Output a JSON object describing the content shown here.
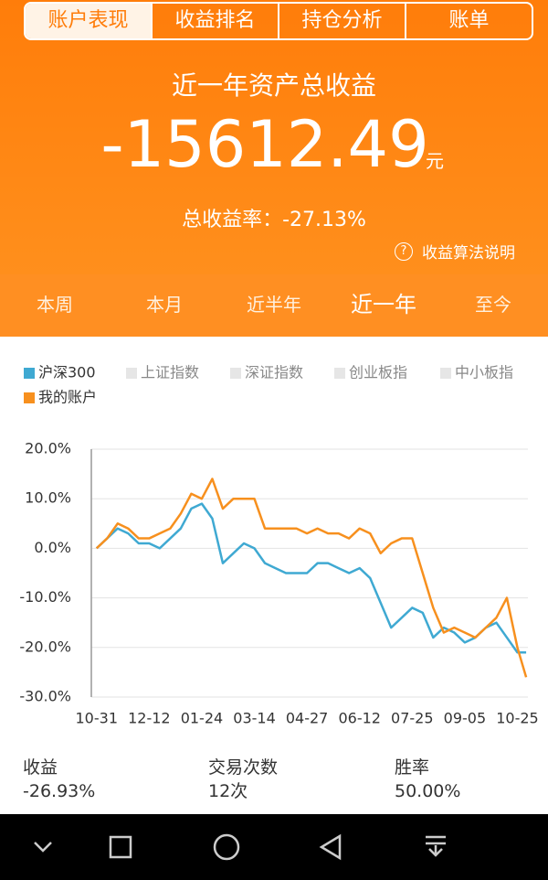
{
  "top_tabs": [
    "账户表现",
    "收益排名",
    "持仓分析",
    "账单"
  ],
  "header": {
    "title": "近一年资产总收益",
    "amount": "-15612.49",
    "unit": "元",
    "rate": "总收益率：-27.13%",
    "help": "收益算法说明"
  },
  "period_tabs": [
    "本周",
    "本月",
    "近半年",
    "近一年",
    "至今"
  ],
  "chart_data": {
    "type": "line",
    "x": [
      0,
      6,
      12,
      18,
      24,
      30,
      36,
      42,
      48,
      54,
      60,
      66,
      72,
      78,
      84,
      90,
      96,
      102,
      108,
      114,
      120,
      126,
      132,
      138,
      144,
      150,
      156,
      162,
      168,
      174,
      180,
      186,
      192,
      198,
      204,
      210,
      216,
      222,
      228,
      234,
      240,
      245
    ],
    "series": [
      {
        "name": "沪深300",
        "color": "#3fa9d2",
        "values": [
          0,
          2,
          4,
          3,
          1,
          1,
          0,
          2,
          4,
          8,
          9,
          6,
          -3,
          -1,
          1,
          0,
          -3,
          -4,
          -5,
          -5,
          -5,
          -3,
          -3,
          -4,
          -5,
          -4,
          -6,
          -11,
          -16,
          -14,
          -12,
          -13,
          -18,
          -16,
          -17,
          -19,
          -18,
          -16,
          -15,
          -18,
          -21,
          -21
        ]
      },
      {
        "name": "我的账户",
        "color": "#f7901e",
        "values": [
          0,
          2,
          5,
          4,
          2,
          2,
          3,
          4,
          7,
          11,
          10,
          14,
          8,
          10,
          10,
          10,
          4,
          4,
          4,
          4,
          3,
          4,
          3,
          3,
          2,
          4,
          3,
          -1,
          1,
          2,
          2,
          -5,
          -12,
          -17,
          -16,
          -17,
          -18,
          -16,
          -14,
          -10,
          -20,
          -26
        ]
      }
    ],
    "inactive_series": [
      {
        "name": "上证指数",
        "color": "#e6e6e6"
      },
      {
        "name": "深证指数",
        "color": "#e6e6e6"
      },
      {
        "name": "创业板指",
        "color": "#e6e6e6"
      },
      {
        "name": "中小板指",
        "color": "#e6e6e6"
      }
    ],
    "xlim": [
      -3,
      246
    ],
    "xticks": [
      {
        "value": 0,
        "label": "10-31"
      },
      {
        "value": 30,
        "label": "12-12"
      },
      {
        "value": 60,
        "label": "01-24"
      },
      {
        "value": 90,
        "label": "03-14"
      },
      {
        "value": 120,
        "label": "04-27"
      },
      {
        "value": 150,
        "label": "06-12"
      },
      {
        "value": 180,
        "label": "07-25"
      },
      {
        "value": 210,
        "label": "09-05"
      },
      {
        "value": 240,
        "label": "10-25"
      }
    ],
    "ylim": [
      -30,
      20
    ],
    "yticks": [
      {
        "value": 20,
        "label": "20.0%"
      },
      {
        "value": 10,
        "label": "10.0%"
      },
      {
        "value": 0,
        "label": "0.0%"
      },
      {
        "value": -10,
        "label": "-10.0%"
      },
      {
        "value": -20,
        "label": "-20.0%"
      },
      {
        "value": -30,
        "label": "-30.0%"
      }
    ],
    "grid": true
  },
  "stats": [
    {
      "label": "收益",
      "value": "-26.93%"
    },
    {
      "label": "交易次数",
      "value": "12次"
    },
    {
      "label": "胜率",
      "value": "50.00%"
    }
  ]
}
